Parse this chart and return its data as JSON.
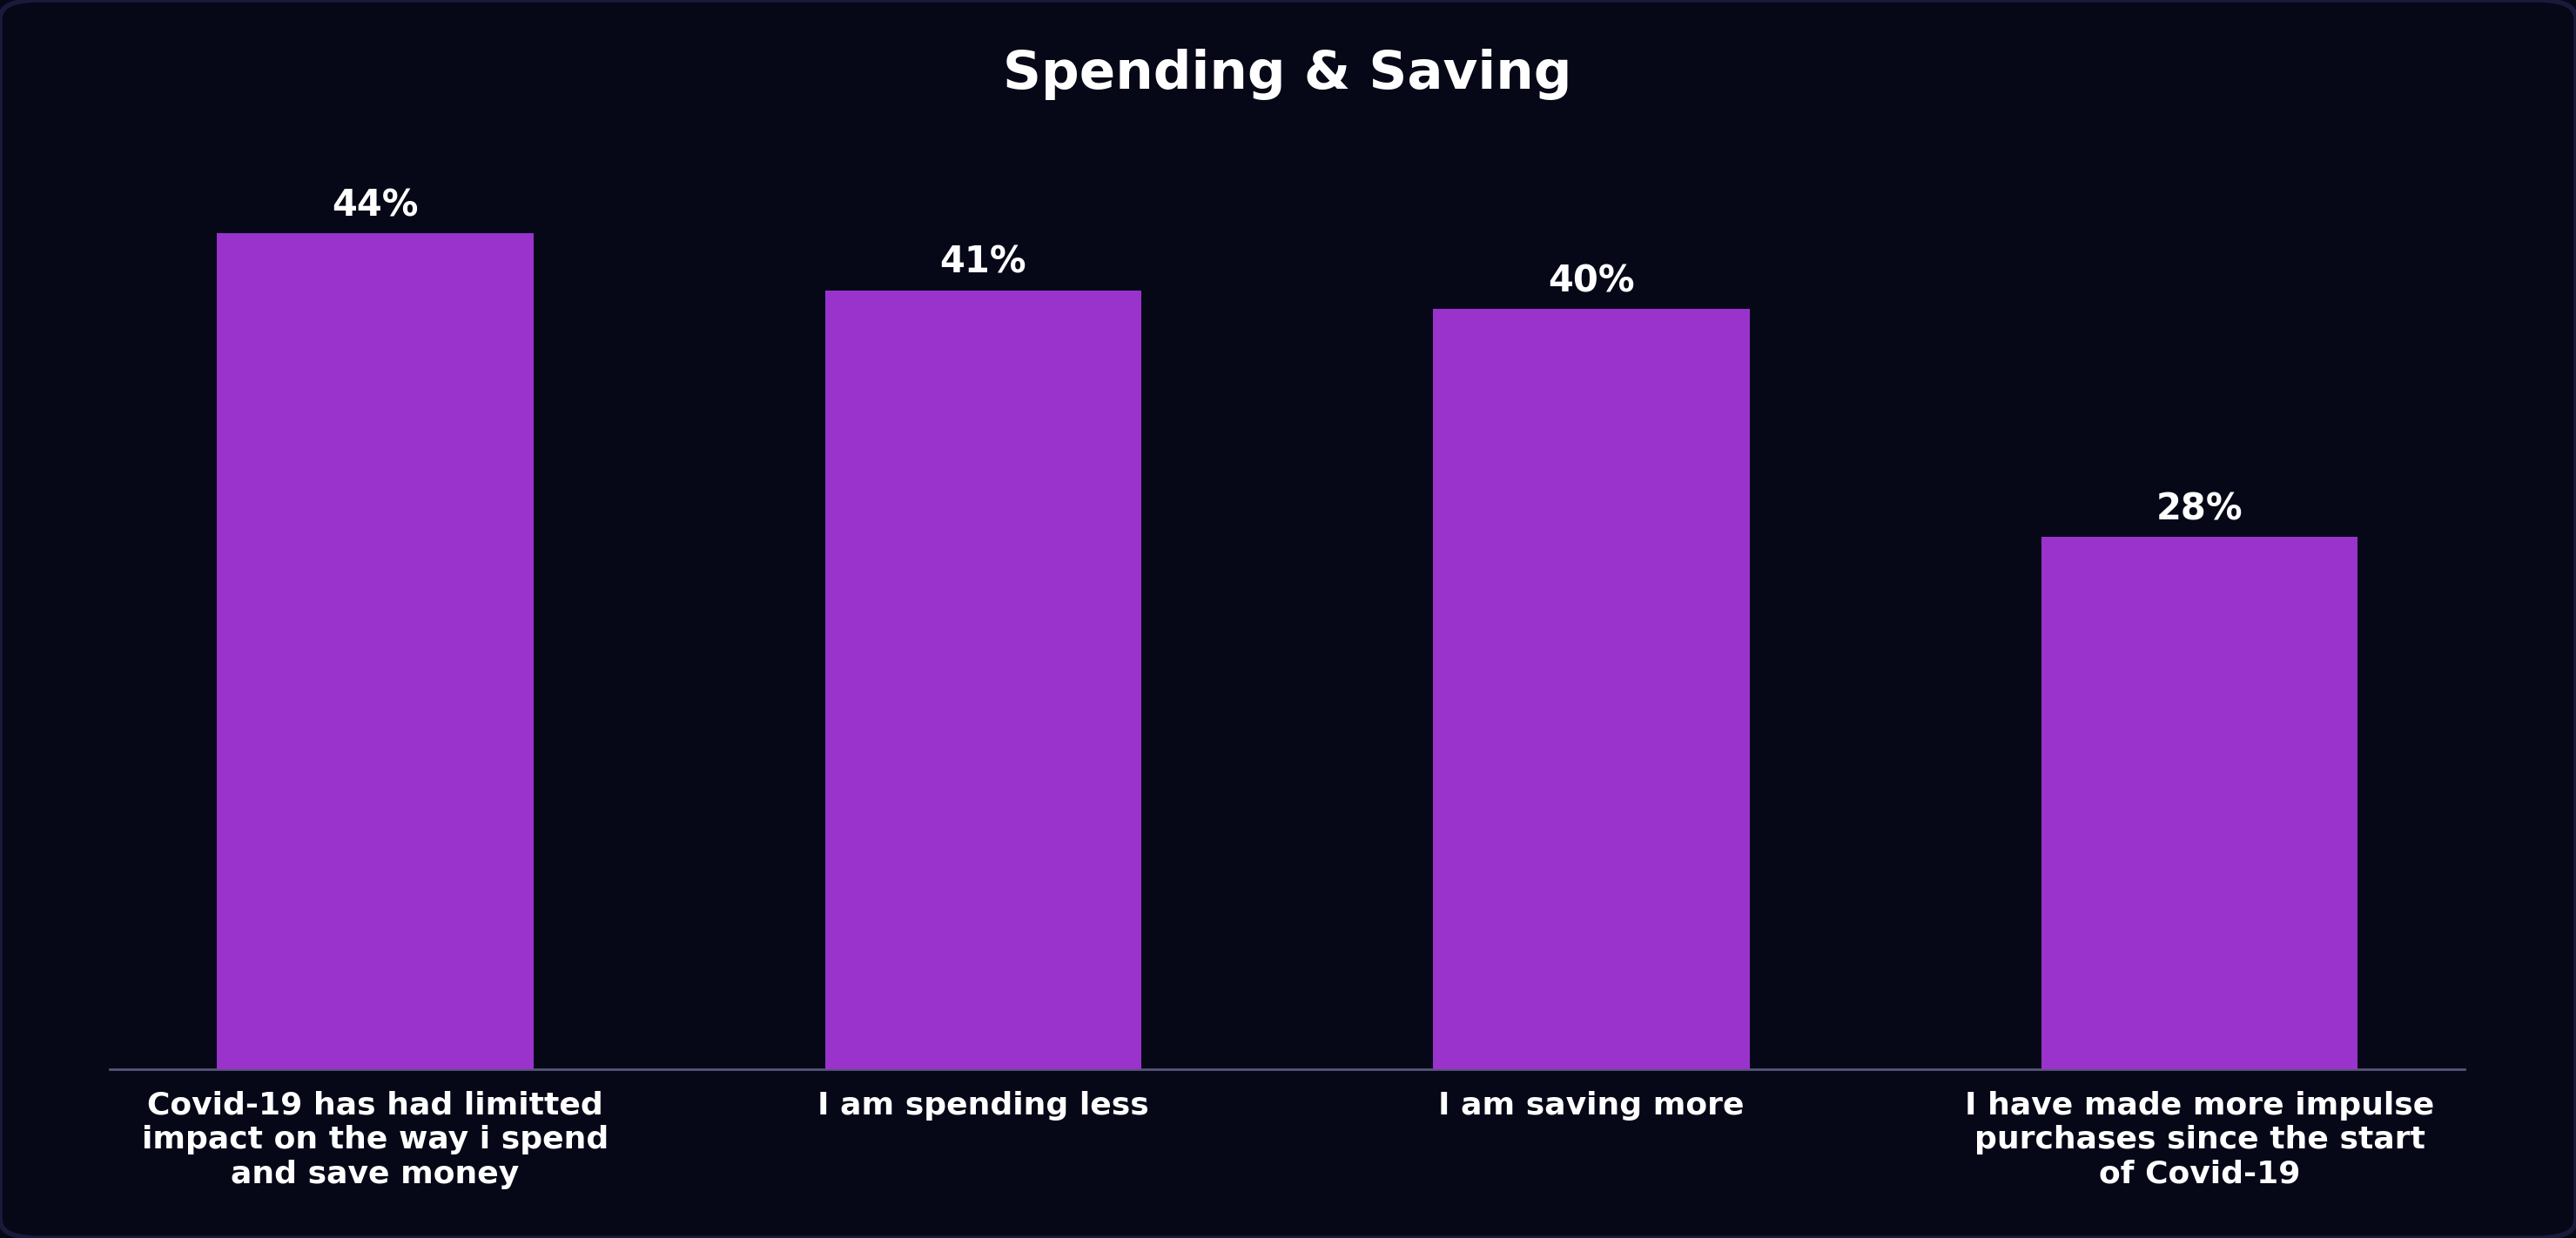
{
  "title": "Spending & Saving",
  "categories": [
    "Covid-19 has had limitted\nimpact on the way i spend\nand save money",
    "I am spending less",
    "I am saving more",
    "I have made more impulse\npurchases since the start\nof Covid-19"
  ],
  "values": [
    44,
    41,
    40,
    28
  ],
  "labels": [
    "44%",
    "41%",
    "40%",
    "28%"
  ],
  "bar_color": "#9933cc",
  "background_color": "#060818",
  "text_color": "#ffffff",
  "title_fontsize": 44,
  "label_fontsize": 30,
  "tick_fontsize": 26,
  "bar_width": 0.52,
  "ylim": [
    0,
    50
  ],
  "spine_color": "#555577"
}
